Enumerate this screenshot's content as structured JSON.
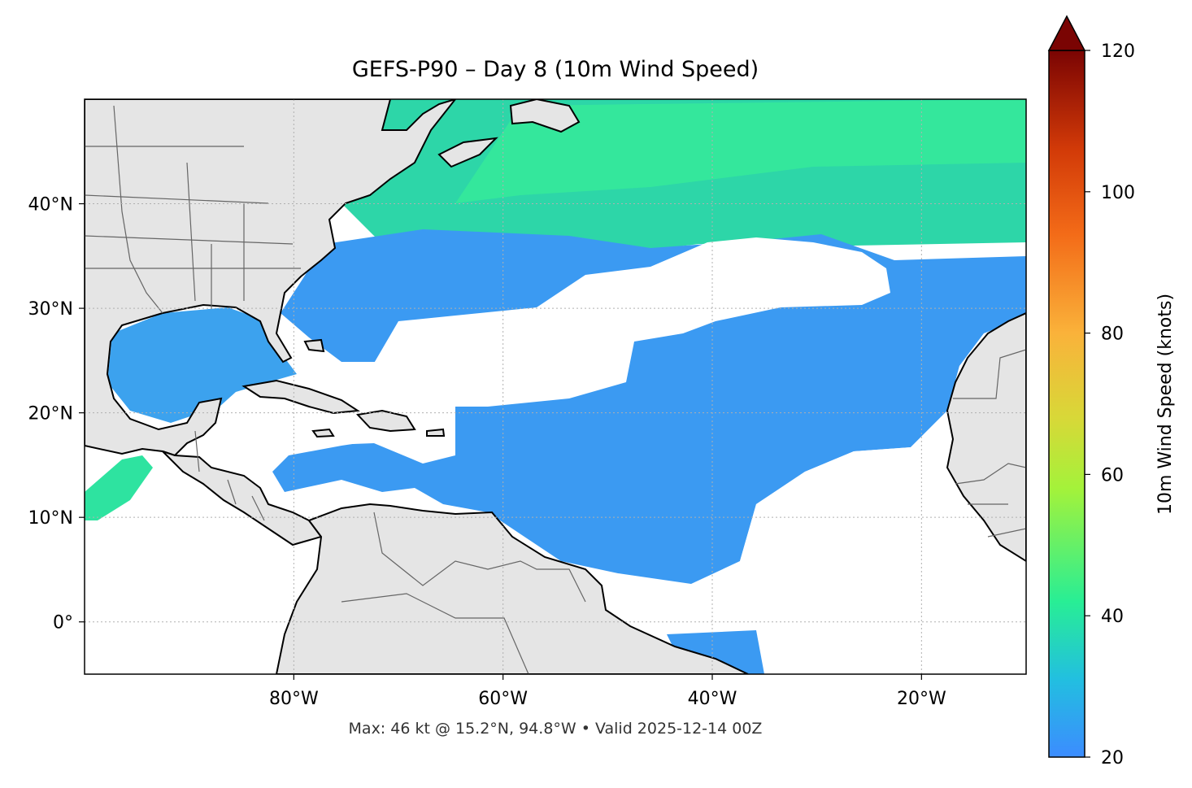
{
  "title": "GEFS-P90 – Day 8 (10m Wind Speed)",
  "caption": "Max: 46 kt @ 15.2°N, 94.8°W • Valid 2025-12-14 00Z",
  "map": {
    "lon_range": [
      -100,
      -10
    ],
    "lat_range": [
      -5,
      50
    ],
    "lon_ticks": [
      {
        "value": -80,
        "label": "80°W"
      },
      {
        "value": -60,
        "label": "60°W"
      },
      {
        "value": -40,
        "label": "40°W"
      },
      {
        "value": -20,
        "label": "20°W"
      }
    ],
    "lat_ticks": [
      {
        "value": 0,
        "label": "0°"
      },
      {
        "value": 10,
        "label": "10°N"
      },
      {
        "value": 20,
        "label": "20°N"
      },
      {
        "value": 30,
        "label": "30°N"
      },
      {
        "value": 40,
        "label": "40°N"
      }
    ],
    "gridlines": true,
    "land_color": "#e5e5e5",
    "coastline_color": "#000000",
    "border_color": "#666666"
  },
  "colorbar": {
    "label": "10m Wind Speed (knots)",
    "min": 20,
    "max": 120,
    "extend": "max",
    "ticks": [
      {
        "value": 20,
        "label": "20"
      },
      {
        "value": 40,
        "label": "40"
      },
      {
        "value": 60,
        "label": "60"
      },
      {
        "value": 80,
        "label": "80"
      },
      {
        "value": 100,
        "label": "100"
      },
      {
        "value": 120,
        "label": "120"
      }
    ],
    "colors": [
      "#3c8cff",
      "#22bfe0",
      "#28ee95",
      "#a4f23a",
      "#d8d838",
      "#fab23a",
      "#f36b18",
      "#d23a08",
      "#a01403",
      "#7a0403"
    ]
  },
  "wind_colors": {
    "low": "#3a8ef8",
    "mid": "#29b9e6",
    "high": "#2ee8a0"
  }
}
